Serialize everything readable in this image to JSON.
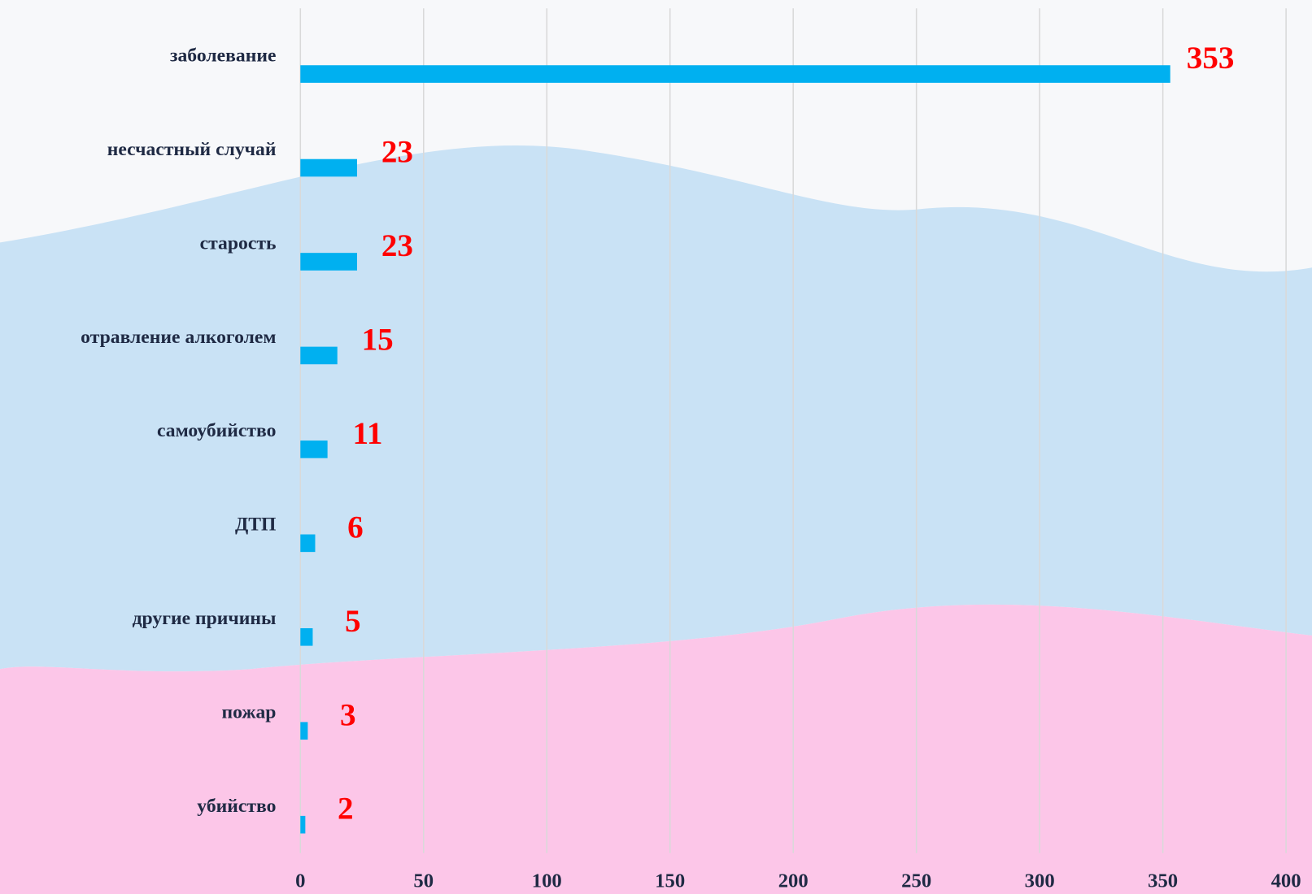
{
  "chart_data": {
    "type": "barh",
    "categories": [
      "заболевание",
      "несчастный случай",
      "старость",
      "отравление алкоголем",
      "самоубийство",
      "ДТП",
      "другие причины",
      "пожар",
      "убийство"
    ],
    "values": [
      353,
      23,
      23,
      15,
      11,
      6,
      5,
      3,
      2
    ],
    "color": "#00b0f0",
    "xlim": [
      0,
      400
    ],
    "xticks": [
      0,
      50,
      100,
      150,
      200,
      250,
      300,
      350,
      400
    ],
    "grid": true
  }
}
